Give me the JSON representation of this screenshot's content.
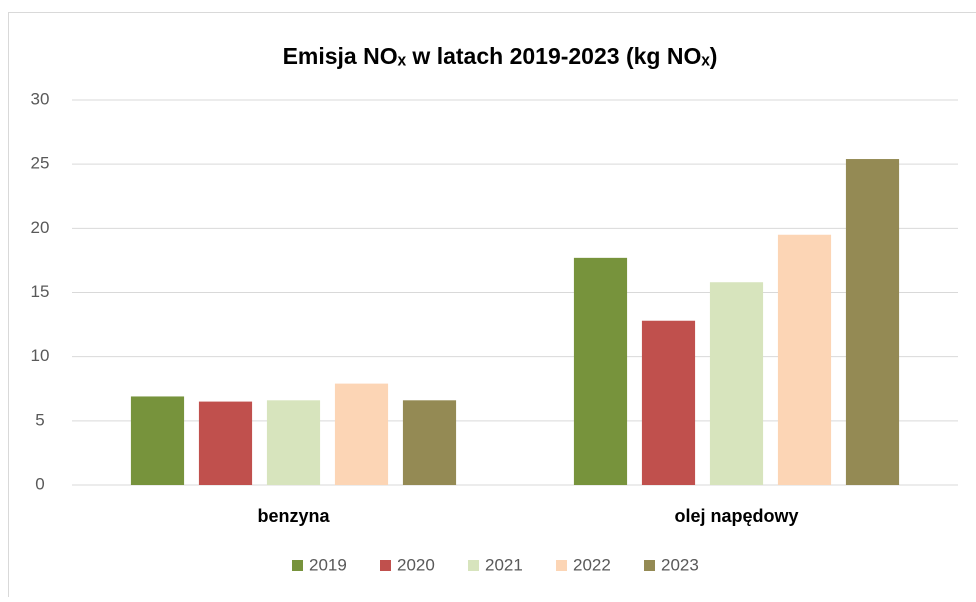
{
  "chart_data": {
    "type": "bar",
    "title": "Emisja NOₓ w latach 2019-2023 (kg NOₓ)",
    "categories": [
      "benzyna",
      "olej napędowy"
    ],
    "series": [
      {
        "name": "2019",
        "color": "#77933c",
        "values": [
          6.9,
          17.7
        ]
      },
      {
        "name": "2020",
        "color": "#c0504d",
        "values": [
          6.5,
          12.8
        ]
      },
      {
        "name": "2021",
        "color": "#d7e4bd",
        "values": [
          6.6,
          15.8
        ]
      },
      {
        "name": "2022",
        "color": "#fcd5b5",
        "values": [
          7.9,
          19.5
        ]
      },
      {
        "name": "2023",
        "color": "#948a54",
        "values": [
          6.6,
          25.4
        ]
      }
    ],
    "ylim": [
      0,
      30
    ],
    "yticks": [
      0,
      5,
      10,
      15,
      20,
      25,
      30
    ],
    "grid": true,
    "legend": "bottom"
  }
}
